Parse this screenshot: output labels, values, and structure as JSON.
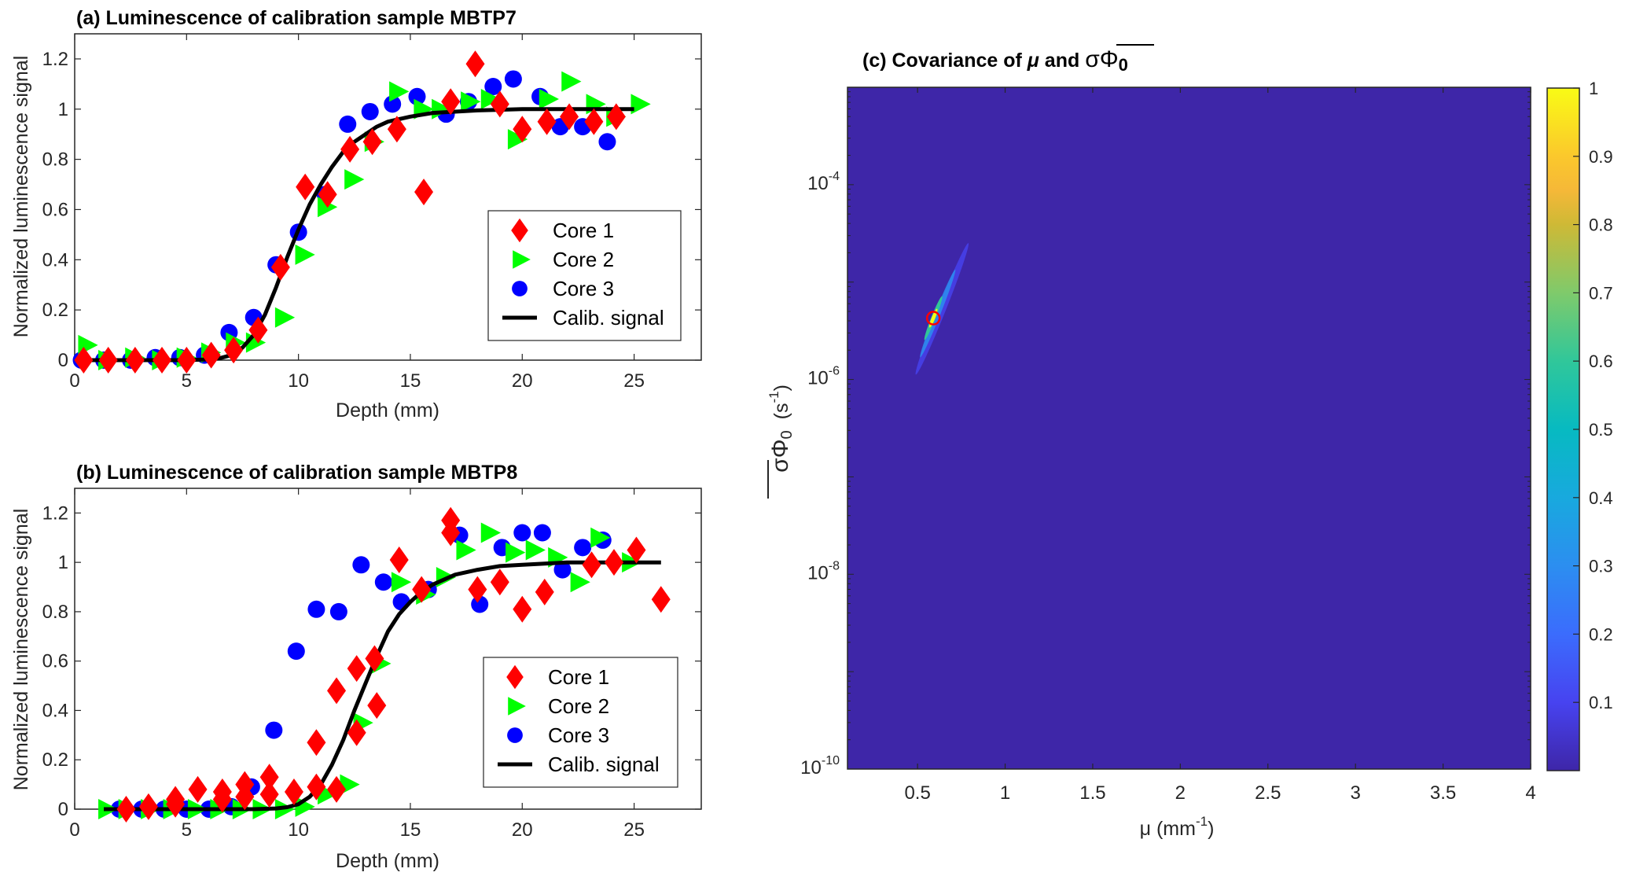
{
  "chart_data": [
    {
      "id": "a",
      "type": "scatter",
      "title": "(a)  Luminescence of calibration sample MBTP7",
      "xlabel": "Depth (mm)",
      "ylabel": "Normalized luminescence signal",
      "xlim": [
        0,
        28
      ],
      "ylim": [
        0,
        1.3
      ],
      "xticks": [
        0,
        5,
        10,
        15,
        20,
        25
      ],
      "yticks": [
        0,
        0.2,
        0.4,
        0.6,
        0.8,
        1,
        1.2
      ],
      "ytick_labels": [
        "0",
        "0.2",
        "0.4",
        "0.6",
        "0.8",
        "1",
        "1.2"
      ],
      "legend_position": "center-right",
      "grid": false,
      "series": [
        {
          "name": "Core 1",
          "marker": "diamond",
          "color": "#ff0000",
          "points": [
            [
              0.4,
              0
            ],
            [
              1.5,
              0
            ],
            [
              2.7,
              0
            ],
            [
              3.9,
              0
            ],
            [
              5.0,
              0
            ],
            [
              6.1,
              0.02
            ],
            [
              7.1,
              0.04
            ],
            [
              8.2,
              0.12
            ],
            [
              9.2,
              0.37
            ],
            [
              10.3,
              0.69
            ],
            [
              11.3,
              0.66
            ],
            [
              12.3,
              0.84
            ],
            [
              13.3,
              0.87
            ],
            [
              14.4,
              0.92
            ],
            [
              15.6,
              0.67
            ],
            [
              16.8,
              1.03
            ],
            [
              17.9,
              1.18
            ],
            [
              19.0,
              1.02
            ],
            [
              20.0,
              0.92
            ],
            [
              21.1,
              0.95
            ],
            [
              22.1,
              0.97
            ],
            [
              23.2,
              0.95
            ],
            [
              24.2,
              0.97
            ]
          ]
        },
        {
          "name": "Core 2",
          "marker": "triangle-right",
          "color": "#00ff00",
          "points": [
            [
              0.5,
              0.06
            ],
            [
              1.4,
              0.0
            ],
            [
              2.6,
              0.01
            ],
            [
              3.8,
              0.0
            ],
            [
              4.9,
              0.01
            ],
            [
              6.0,
              0.03
            ],
            [
              7.1,
              0.07
            ],
            [
              8.0,
              0.07
            ],
            [
              9.3,
              0.17
            ],
            [
              10.2,
              0.42
            ],
            [
              11.2,
              0.61
            ],
            [
              12.4,
              0.72
            ],
            [
              13.3,
              0.87
            ],
            [
              14.4,
              1.07
            ],
            [
              15.5,
              1.0
            ],
            [
              16.3,
              1.0
            ],
            [
              17.6,
              1.03
            ],
            [
              18.5,
              1.04
            ],
            [
              19.7,
              0.88
            ],
            [
              21.1,
              1.04
            ],
            [
              22.1,
              1.11
            ],
            [
              23.2,
              1.02
            ],
            [
              24.1,
              0.97
            ],
            [
              25.2,
              1.02
            ]
          ]
        },
        {
          "name": "Core 3",
          "marker": "circle",
          "color": "#0000ff",
          "points": [
            [
              0.3,
              0
            ],
            [
              1.3,
              0
            ],
            [
              2.5,
              0
            ],
            [
              3.6,
              0.01
            ],
            [
              4.7,
              0.01
            ],
            [
              5.8,
              0.02
            ],
            [
              6.9,
              0.11
            ],
            [
              8.0,
              0.17
            ],
            [
              9.0,
              0.38
            ],
            [
              10.0,
              0.51
            ],
            [
              11.2,
              0.66
            ],
            [
              12.2,
              0.94
            ],
            [
              13.2,
              0.99
            ],
            [
              14.2,
              1.02
            ],
            [
              15.3,
              1.05
            ],
            [
              16.6,
              0.98
            ],
            [
              17.6,
              1.03
            ],
            [
              18.7,
              1.09
            ],
            [
              19.6,
              1.12
            ],
            [
              20.8,
              1.05
            ],
            [
              21.7,
              0.93
            ],
            [
              22.7,
              0.93
            ],
            [
              23.8,
              0.87
            ]
          ]
        },
        {
          "name": "Calib. signal",
          "marker": "line",
          "color": "#000000",
          "points": [
            [
              0.5,
              0
            ],
            [
              5,
              0
            ],
            [
              6,
              0.003
            ],
            [
              6.5,
              0.008
            ],
            [
              7,
              0.02
            ],
            [
              7.5,
              0.05
            ],
            [
              8,
              0.1
            ],
            [
              8.5,
              0.18
            ],
            [
              9,
              0.29
            ],
            [
              9.5,
              0.41
            ],
            [
              10,
              0.52
            ],
            [
              10.5,
              0.62
            ],
            [
              11,
              0.7
            ],
            [
              11.5,
              0.77
            ],
            [
              12,
              0.83
            ],
            [
              12.5,
              0.87
            ],
            [
              13,
              0.9
            ],
            [
              13.5,
              0.93
            ],
            [
              14,
              0.95
            ],
            [
              15,
              0.97
            ],
            [
              16,
              0.985
            ],
            [
              17,
              0.99
            ],
            [
              18,
              0.995
            ],
            [
              20,
              1.0
            ],
            [
              25,
              1.0
            ]
          ]
        }
      ]
    },
    {
      "id": "b",
      "type": "scatter",
      "title": "(b)  Luminescence of calibration sample MBTP8",
      "xlabel": "Depth (mm)",
      "ylabel": "Normalized luminescence signal",
      "xlim": [
        0,
        28
      ],
      "ylim": [
        0,
        1.3
      ],
      "xticks": [
        0,
        5,
        10,
        15,
        20,
        25
      ],
      "yticks": [
        0,
        0.2,
        0.4,
        0.6,
        0.8,
        1,
        1.2
      ],
      "ytick_labels": [
        "0",
        "0.2",
        "0.4",
        "0.6",
        "0.8",
        "1",
        "1.2"
      ],
      "legend_position": "center-right",
      "grid": false,
      "series": [
        {
          "name": "Core 1",
          "marker": "diamond",
          "color": "#ff0000",
          "points": [
            [
              2.3,
              0.0
            ],
            [
              3.3,
              0.01
            ],
            [
              4.5,
              0.04
            ],
            [
              4.5,
              0.02
            ],
            [
              5.5,
              0.08
            ],
            [
              6.6,
              0.07
            ],
            [
              6.6,
              0.04
            ],
            [
              7.6,
              0.1
            ],
            [
              7.6,
              0.05
            ],
            [
              8.7,
              0.13
            ],
            [
              8.7,
              0.06
            ],
            [
              9.8,
              0.07
            ],
            [
              10.8,
              0.27
            ],
            [
              10.8,
              0.09
            ],
            [
              11.7,
              0.48
            ],
            [
              11.7,
              0.08
            ],
            [
              12.6,
              0.57
            ],
            [
              12.6,
              0.31
            ],
            [
              13.4,
              0.61
            ],
            [
              13.5,
              0.42
            ],
            [
              14.5,
              1.01
            ],
            [
              15.5,
              0.89
            ],
            [
              16.8,
              1.17
            ],
            [
              16.8,
              1.12
            ],
            [
              18.0,
              0.89
            ],
            [
              19.0,
              0.92
            ],
            [
              20.0,
              0.81
            ],
            [
              21.0,
              0.88
            ],
            [
              23.1,
              0.99
            ],
            [
              24.1,
              1.0
            ],
            [
              25.1,
              1.05
            ],
            [
              26.2,
              0.85
            ]
          ]
        },
        {
          "name": "Core 2",
          "marker": "triangle-right",
          "color": "#00ff00",
          "points": [
            [
              1.4,
              0
            ],
            [
              2.3,
              0
            ],
            [
              3.3,
              0
            ],
            [
              4.3,
              0
            ],
            [
              5.4,
              0
            ],
            [
              6.4,
              0
            ],
            [
              7.4,
              0
            ],
            [
              8.3,
              0
            ],
            [
              9.3,
              0
            ],
            [
              10.2,
              0.01
            ],
            [
              11.2,
              0.06
            ],
            [
              12.2,
              0.1
            ],
            [
              12.8,
              0.35
            ],
            [
              13.6,
              0.59
            ],
            [
              14.5,
              0.92
            ],
            [
              15.6,
              0.87
            ],
            [
              16.5,
              0.94
            ],
            [
              17.4,
              1.05
            ],
            [
              18.5,
              1.12
            ],
            [
              19.6,
              1.04
            ],
            [
              20.5,
              1.05
            ],
            [
              21.5,
              1.02
            ],
            [
              22.5,
              0.92
            ],
            [
              23.4,
              1.1
            ],
            [
              24.8,
              1.0
            ]
          ]
        },
        {
          "name": "Core 3",
          "marker": "circle",
          "color": "#0000ff",
          "points": [
            [
              2.0,
              0
            ],
            [
              3.0,
              0
            ],
            [
              4.0,
              0
            ],
            [
              5.0,
              0
            ],
            [
              6.0,
              0
            ],
            [
              7.0,
              0.01
            ],
            [
              7.9,
              0.09
            ],
            [
              8.9,
              0.32
            ],
            [
              9.9,
              0.64
            ],
            [
              10.8,
              0.81
            ],
            [
              11.8,
              0.8
            ],
            [
              12.8,
              0.99
            ],
            [
              13.8,
              0.92
            ],
            [
              14.6,
              0.84
            ],
            [
              15.8,
              0.89
            ],
            [
              17.2,
              1.11
            ],
            [
              18.1,
              0.83
            ],
            [
              19.1,
              1.06
            ],
            [
              20.0,
              1.12
            ],
            [
              20.9,
              1.12
            ],
            [
              21.8,
              0.97
            ],
            [
              22.7,
              1.06
            ],
            [
              23.6,
              1.09
            ]
          ]
        },
        {
          "name": "Calib. signal",
          "marker": "line",
          "color": "#000000",
          "points": [
            [
              1.3,
              0
            ],
            [
              8,
              0
            ],
            [
              9,
              0.003
            ],
            [
              9.5,
              0.008
            ],
            [
              10,
              0.02
            ],
            [
              10.5,
              0.05
            ],
            [
              11,
              0.1
            ],
            [
              11.5,
              0.18
            ],
            [
              12,
              0.28
            ],
            [
              12.5,
              0.4
            ],
            [
              13,
              0.51
            ],
            [
              13.5,
              0.62
            ],
            [
              14,
              0.72
            ],
            [
              14.5,
              0.79
            ],
            [
              15,
              0.84
            ],
            [
              15.5,
              0.88
            ],
            [
              16,
              0.91
            ],
            [
              16.5,
              0.93
            ],
            [
              17,
              0.95
            ],
            [
              18,
              0.97
            ],
            [
              19,
              0.985
            ],
            [
              20,
              0.99
            ],
            [
              21,
              0.995
            ],
            [
              22,
              1.0
            ],
            [
              26.2,
              1.0
            ]
          ]
        }
      ]
    },
    {
      "id": "c",
      "type": "heatmap",
      "title_prefix": "(c)  Covariance of ",
      "title_mu": "μ",
      "title_and": " and ",
      "title_sym": "σΦ",
      "title_sub": "0",
      "xlabel_main": "μ (mm",
      "xlabel_sup": "-1",
      "xlabel_end": ")",
      "ylabel_sym": "σΦ",
      "ylabel_sub": "0",
      "ylabel_unit": "(s",
      "ylabel_sup": "-1",
      "ylabel_end": ")",
      "xlim": [
        0.1,
        4
      ],
      "ylim_log10": [
        -10,
        -3
      ],
      "yscale": "log",
      "xticks": [
        0.5,
        1,
        1.5,
        2,
        2.5,
        3,
        3.5,
        4
      ],
      "xtick_labels": [
        "0.5",
        "1",
        "1.5",
        "2",
        "2.5",
        "3",
        "3.5",
        "4"
      ],
      "yticks_log10": [
        -10,
        -8,
        -6,
        -4
      ],
      "ytick_labels": [
        {
          "base": "10",
          "exp": "-10"
        },
        {
          "base": "10",
          "exp": "-8"
        },
        {
          "base": "10",
          "exp": "-6"
        },
        {
          "base": "10",
          "exp": "-4"
        }
      ],
      "background_value": 0,
      "peak": {
        "mu": 0.59,
        "log10_sigma_phi0": -5.37,
        "value": 1
      },
      "ridge": {
        "mu_range": [
          0.49,
          0.79
        ],
        "log10_range": [
          -5.95,
          -4.6
        ]
      },
      "marker": {
        "type": "circle",
        "color": "#ff0000",
        "mu": 0.59,
        "log10_sigma_phi0": -5.37
      },
      "colormap": "parula",
      "colorbar": {
        "limits": [
          0,
          1
        ],
        "ticks": [
          0.1,
          0.2,
          0.3,
          0.4,
          0.5,
          0.6,
          0.7,
          0.8,
          0.9,
          1
        ],
        "tick_labels": [
          "0.1",
          "0.2",
          "0.3",
          "0.4",
          "0.5",
          "0.6",
          "0.7",
          "0.8",
          "0.9",
          "1"
        ],
        "position": "right"
      }
    }
  ]
}
